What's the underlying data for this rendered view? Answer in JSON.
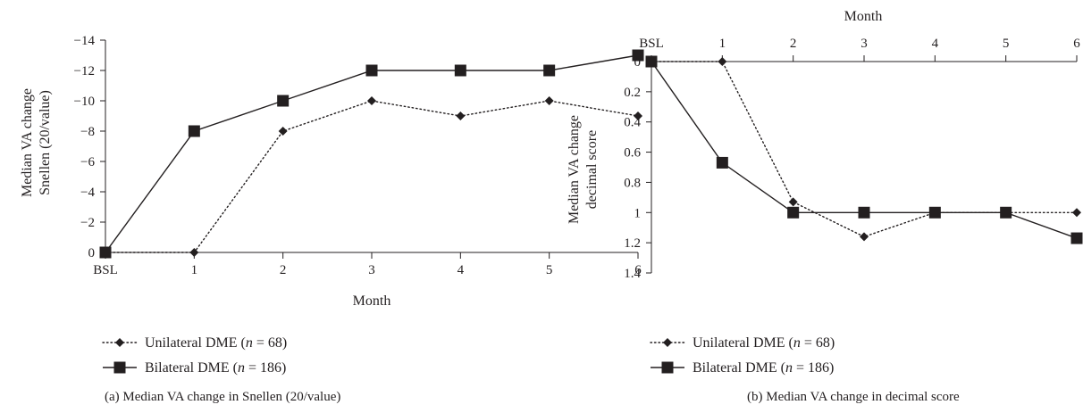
{
  "chart_data": [
    {
      "type": "line",
      "caption": "(a)  Median VA change in Snellen (20/value)",
      "categories": [
        "BSL",
        "1",
        "2",
        "3",
        "4",
        "5",
        "6"
      ],
      "xlabel": "Month",
      "ylabel": [
        "Median VA change",
        "Snellen (20/value)"
      ],
      "ylim": [
        -14,
        0
      ],
      "y_inverted": true,
      "yticks": [
        "−14",
        "−12",
        "−10",
        "−8",
        "−6",
        "−4",
        "−2",
        "0"
      ],
      "grid": false,
      "legend_position": "bottom-left",
      "series": [
        {
          "name": "Unilateral DME (n = 68)",
          "name_parts": [
            "Unilateral DME (",
            "n",
            " = 68)"
          ],
          "values": [
            0,
            0,
            -8,
            -10,
            -9,
            -10,
            -9
          ],
          "marker": "diamond",
          "line": "dotted"
        },
        {
          "name": "Bilateral DME (n = 186)",
          "name_parts": [
            "Bilateral DME (",
            "n",
            " = 186)"
          ],
          "values": [
            0,
            -8,
            -10,
            -12,
            -12,
            -12,
            -13
          ],
          "marker": "square",
          "line": "solid"
        }
      ]
    },
    {
      "type": "line",
      "caption": "(b)  Median VA change in decimal score",
      "categories": [
        "BSL",
        "1",
        "2",
        "3",
        "4",
        "5",
        "6"
      ],
      "xlabel": "Month",
      "xaxis_position": "top",
      "ylabel": [
        "Median VA change",
        "decimal score"
      ],
      "ylim": [
        0,
        1.4
      ],
      "y_inverted": true,
      "yticks": [
        "0",
        "0.2",
        "0.4",
        "0.6",
        "0.8",
        "1",
        "1.2",
        "1.4"
      ],
      "grid": false,
      "legend_position": "bottom-left",
      "series": [
        {
          "name": "Unilateral DME (n = 68)",
          "name_parts": [
            "Unilateral DME (",
            "n",
            " = 68)"
          ],
          "values": [
            0,
            0,
            0.93,
            1.16,
            1.0,
            1.0,
            1.0
          ],
          "marker": "diamond",
          "line": "dotted"
        },
        {
          "name": "Bilateral DME (n = 186)",
          "name_parts": [
            "Bilateral DME (",
            "n",
            " = 186)"
          ],
          "values": [
            0,
            0.67,
            1.0,
            1.0,
            1.0,
            1.0,
            1.17
          ],
          "marker": "square",
          "line": "solid"
        }
      ]
    }
  ]
}
